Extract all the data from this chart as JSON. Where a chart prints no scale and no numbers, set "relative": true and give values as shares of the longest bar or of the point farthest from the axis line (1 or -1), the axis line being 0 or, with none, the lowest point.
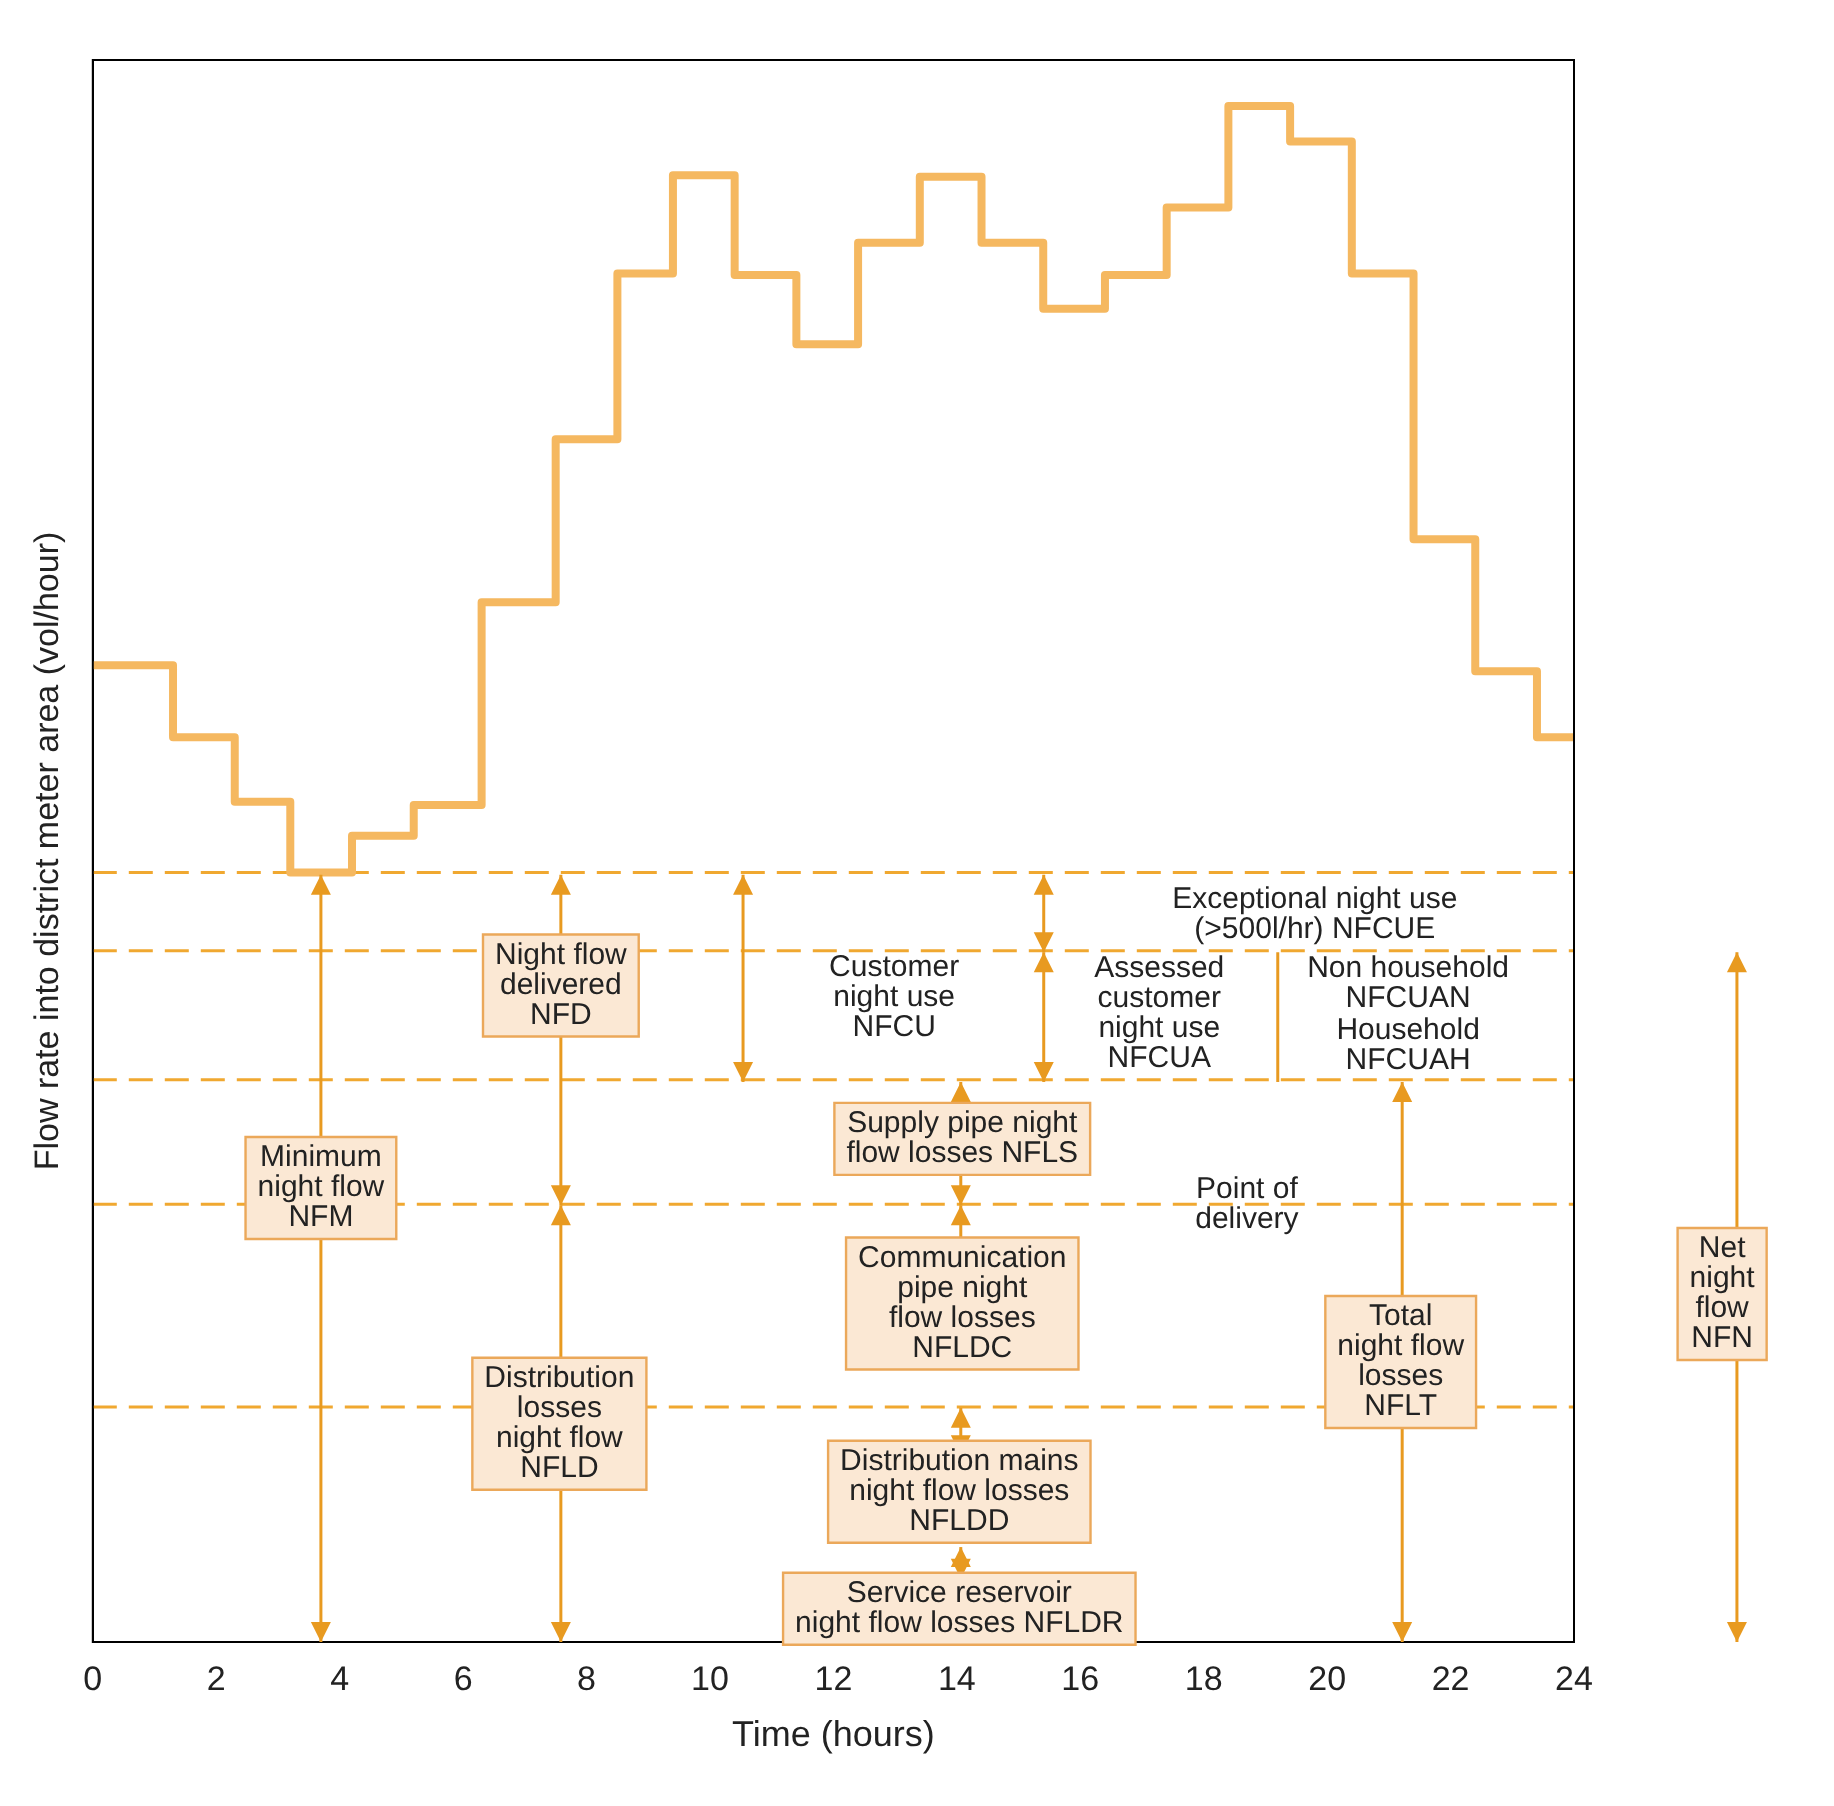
{
  "chart_data": {
    "type": "step",
    "relative": true,
    "xlabel": "Time (hours)",
    "ylabel": "Flow rate into district meter area (vol/hour)",
    "x": [
      0,
      1.3,
      2.3,
      3.2,
      4.2,
      5.2,
      6.3,
      7.5,
      8.5,
      9.4,
      10.4,
      11.4,
      12.4,
      13.4,
      14.4,
      15.4,
      16.4,
      17.4,
      18.4,
      19.4,
      20.4,
      21.4,
      22.4,
      23.4,
      24
    ],
    "series": [
      {
        "color": "#f5b860",
        "values": [
          0.636,
          0.589,
          0.547,
          0.501,
          0.525,
          0.545,
          0.677,
          0.783,
          0.891,
          0.955,
          0.89,
          0.845,
          0.911,
          0.954,
          0.911,
          0.868,
          0.89,
          0.934,
          1,
          0.977,
          0.891,
          0.718,
          0.632,
          0.589,
          0.589
        ]
      }
    ],
    "xlim": [
      0,
      24
    ],
    "xticks": [
      0,
      2,
      4,
      6,
      8,
      10,
      12,
      14,
      16,
      18,
      20,
      22,
      24
    ],
    "grid": false,
    "legend": false,
    "marker": "none",
    "ref_lines": [
      {
        "axis": "y",
        "value": 0.501,
        "color": "#f0a830",
        "line_style": "dashed"
      },
      {
        "axis": "y",
        "value": 0.45,
        "color": "#f0a830",
        "line_style": "dashed"
      },
      {
        "axis": "y",
        "value": 0.366,
        "color": "#f0a830",
        "line_style": "dashed"
      },
      {
        "axis": "y",
        "value": 0.285,
        "color": "#f0a830",
        "line_style": "dashed"
      },
      {
        "axis": "y",
        "value": 0.153,
        "color": "#f0a830",
        "line_style": "dashed"
      }
    ],
    "annotations": [
      "Exceptional night use\n(>500l/hr) NFCUE",
      "Night flow\ndelivered\nNFD",
      "Customer\nnight use\nNFCU",
      "Assessed\ncustomer\nnight use\nNFCUA",
      "Non household\nNFCUAN",
      "Household\nNFCUAH",
      "Minimum\nnight flow\nNFM",
      "Supply pipe night\nflow losses NFLS",
      {
        "text": "Point of\ndelivery",
        "x": 18.7,
        "y": 0.285
      },
      "Net\nnight\nflow\nNFN",
      "Communication\npipe night\nflow losses\nNFLDC",
      "Total\nnight flow\nlosses\nNFLT",
      "Distribution\nlosses\nnight flow\nNFLD",
      "Distribution mains\nnight flow losses\nNFLDD",
      "Service reservoir\nnight flow losses NFLDR"
    ]
  }
}
